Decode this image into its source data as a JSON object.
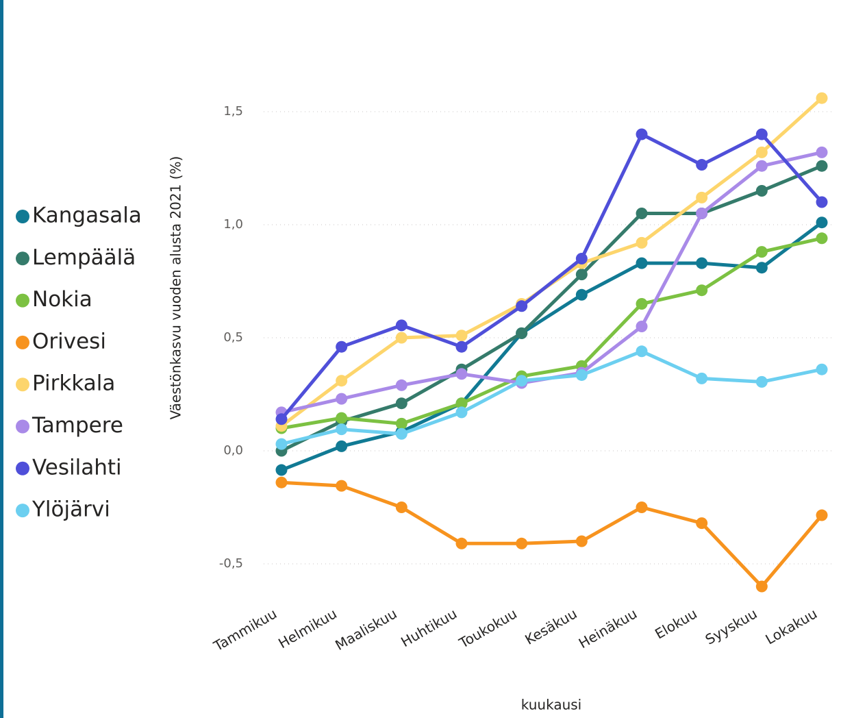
{
  "chart_data": {
    "type": "line",
    "y_label": "Väestönkasvu vuoden alusta 2021 (%)",
    "x_label": "kuukausi",
    "categories": [
      "Tammikuu",
      "Helmikuu",
      "Maaliskuu",
      "Huhtikuu",
      "Toukokuu",
      "Kesäkuu",
      "Heinäkuu",
      "Elokuu",
      "Syyskuu",
      "Lokakuu"
    ],
    "series": [
      {
        "name": "Kangasala",
        "color": "#117a94",
        "values": [
          -0.085,
          0.02,
          0.085,
          0.21,
          0.52,
          0.69,
          0.83,
          0.83,
          0.81,
          1.01
        ]
      },
      {
        "name": "Lempäälä",
        "color": "#357b6b",
        "values": [
          0.0,
          0.13,
          0.21,
          0.36,
          0.52,
          0.78,
          1.05,
          1.05,
          1.15,
          1.26
        ]
      },
      {
        "name": "Nokia",
        "color": "#7cc142",
        "values": [
          0.1,
          0.145,
          0.12,
          0.21,
          0.33,
          0.375,
          0.65,
          0.71,
          0.88,
          0.94
        ]
      },
      {
        "name": "Orivesi",
        "color": "#f7931e",
        "values": [
          -0.14,
          -0.155,
          -0.25,
          -0.41,
          -0.41,
          -0.4,
          -0.25,
          -0.32,
          -0.6,
          -0.285
        ]
      },
      {
        "name": "Pirkkala",
        "color": "#fdd56c",
        "values": [
          0.11,
          0.31,
          0.5,
          0.51,
          0.65,
          0.83,
          0.92,
          1.12,
          1.32,
          1.56
        ]
      },
      {
        "name": "Tampere",
        "color": "#a98ae8",
        "values": [
          0.17,
          0.23,
          0.29,
          0.34,
          0.3,
          0.345,
          0.55,
          1.05,
          1.26,
          1.32
        ]
      },
      {
        "name": "Vesilahti",
        "color": "#4f4fd9",
        "values": [
          0.14,
          0.46,
          0.555,
          0.46,
          0.64,
          0.85,
          1.4,
          1.265,
          1.4,
          1.1
        ]
      },
      {
        "name": "Ylöjärvi",
        "color": "#6ccff0",
        "values": [
          0.03,
          0.095,
          0.075,
          0.17,
          0.31,
          0.335,
          0.44,
          0.32,
          0.305,
          0.36
        ]
      }
    ],
    "ylim": [
      -0.65,
      1.65
    ],
    "yticks": [
      {
        "value": -0.5,
        "label": "-0,5"
      },
      {
        "value": 0,
        "label": "0,0"
      },
      {
        "value": 0.5,
        "label": "0,5"
      },
      {
        "value": 1.0,
        "label": "1,0"
      },
      {
        "value": 1.5,
        "label": "1,5"
      }
    ],
    "grid": true
  }
}
